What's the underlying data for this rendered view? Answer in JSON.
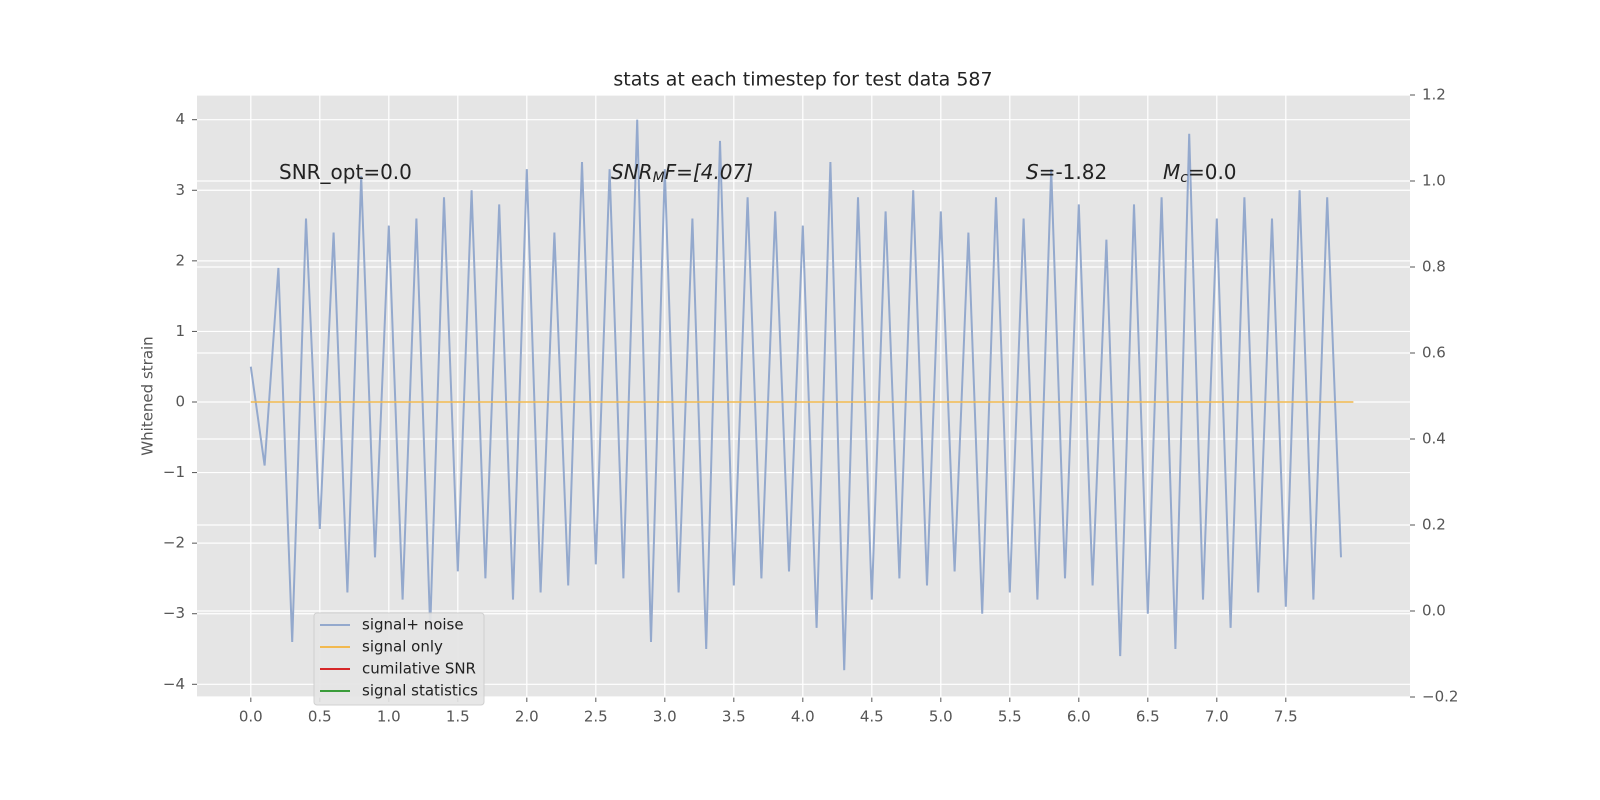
{
  "chart_data": {
    "type": "line",
    "title": "stats at each timestep for test data 587",
    "y_label": "Whitened strain",
    "annotations": [
      [
        "SNR_opt=0.0"
      ],
      [
        "SNR",
        "M",
        "F=[4.07]"
      ],
      [
        "S",
        "=-1.82"
      ],
      [
        "M",
        "c",
        "=0.0"
      ]
    ],
    "series": [
      {
        "name": "signal+ noise",
        "color": "#94a9cd",
        "x": [
          0.0,
          0.1,
          0.2,
          0.3,
          0.4,
          0.5,
          0.6,
          0.7,
          0.8,
          0.9,
          1.0,
          1.1,
          1.2,
          1.3,
          1.4,
          1.5,
          1.6,
          1.7,
          1.8,
          1.9,
          2.0,
          2.1,
          2.2,
          2.3,
          2.4,
          2.5,
          2.6,
          2.7,
          2.8,
          2.9,
          3.0,
          3.1,
          3.2,
          3.3,
          3.4,
          3.5,
          3.6,
          3.7,
          3.8,
          3.9,
          4.0,
          4.1,
          4.2,
          4.3,
          4.4,
          4.5,
          4.6,
          4.7,
          4.8,
          4.9,
          5.0,
          5.1,
          5.2,
          5.3,
          5.4,
          5.5,
          5.6,
          5.7,
          5.8,
          5.9,
          6.0,
          6.1,
          6.2,
          6.3,
          6.4,
          6.5,
          6.6,
          6.7,
          6.8,
          6.9,
          7.0,
          7.1,
          7.2,
          7.3,
          7.4,
          7.5,
          7.6,
          7.7,
          7.8,
          7.9
        ],
        "values": [
          0.5,
          -0.9,
          1.9,
          -3.4,
          2.6,
          -1.8,
          2.4,
          -2.7,
          3.2,
          -2.2,
          2.5,
          -2.8,
          2.6,
          -3.2,
          2.9,
          -2.4,
          3.0,
          -2.5,
          2.8,
          -2.8,
          3.3,
          -2.7,
          2.4,
          -2.6,
          3.4,
          -2.3,
          3.3,
          -2.5,
          4.0,
          -3.4,
          3.3,
          -2.7,
          2.6,
          -3.5,
          3.7,
          -2.6,
          2.9,
          -2.5,
          2.7,
          -2.4,
          2.5,
          -3.2,
          3.4,
          -3.8,
          2.9,
          -2.8,
          2.7,
          -2.5,
          3.0,
          -2.6,
          2.7,
          -2.4,
          2.4,
          -3.0,
          2.9,
          -2.7,
          2.6,
          -2.8,
          3.3,
          -2.5,
          2.8,
          -2.6,
          2.3,
          -3.6,
          2.8,
          -3.0,
          2.9,
          -3.5,
          3.8,
          -2.8,
          2.6,
          -3.2,
          2.9,
          -2.7,
          2.6,
          -2.9,
          3.0,
          -2.8,
          2.9,
          -2.2
        ]
      },
      {
        "name": "signal only",
        "color": "#f2b94f",
        "x": [
          0.0,
          7.99
        ],
        "values": [
          0,
          0
        ]
      },
      {
        "name": "cumilative SNR",
        "color": "#d62728",
        "axis": "y2",
        "x": [],
        "values": []
      },
      {
        "name": "signal statistics",
        "color": "#3a9c3a",
        "axis": "y2",
        "x": [],
        "values": []
      }
    ],
    "xlim": [
      -0.39,
      8.4
    ],
    "xticks": [
      {
        "value": 0,
        "label": "0.0"
      },
      0.5,
      {
        "value": 1,
        "label": "1.0"
      },
      1.5,
      {
        "value": 2,
        "label": "2.0"
      },
      2.5,
      {
        "value": 3,
        "label": "3.0"
      },
      3.5,
      {
        "value": 4,
        "label": "4.0"
      },
      4.5,
      {
        "value": 5,
        "label": "5.0"
      },
      5.5,
      {
        "value": 6,
        "label": "6.0"
      },
      6.5,
      {
        "value": 7,
        "label": "7.0"
      },
      7.5
    ],
    "ylim": [
      -4.18,
      4.35
    ],
    "yticks": [
      {
        "value": -4,
        "label": "−4"
      },
      {
        "value": -3,
        "label": "−3"
      },
      {
        "value": -2,
        "label": "−2"
      },
      {
        "value": -1,
        "label": "−1"
      },
      0,
      1,
      2,
      3,
      4
    ],
    "y2lim": [
      -0.2,
      1.2
    ],
    "y2ticks": [
      {
        "value": -0.2,
        "label": "−0.2"
      },
      {
        "value": 0,
        "label": "0.0"
      },
      0.2,
      0.4,
      0.6,
      0.8,
      {
        "value": 1,
        "label": "1.0"
      },
      1.2
    ],
    "grid": true,
    "legend": "lower left"
  }
}
